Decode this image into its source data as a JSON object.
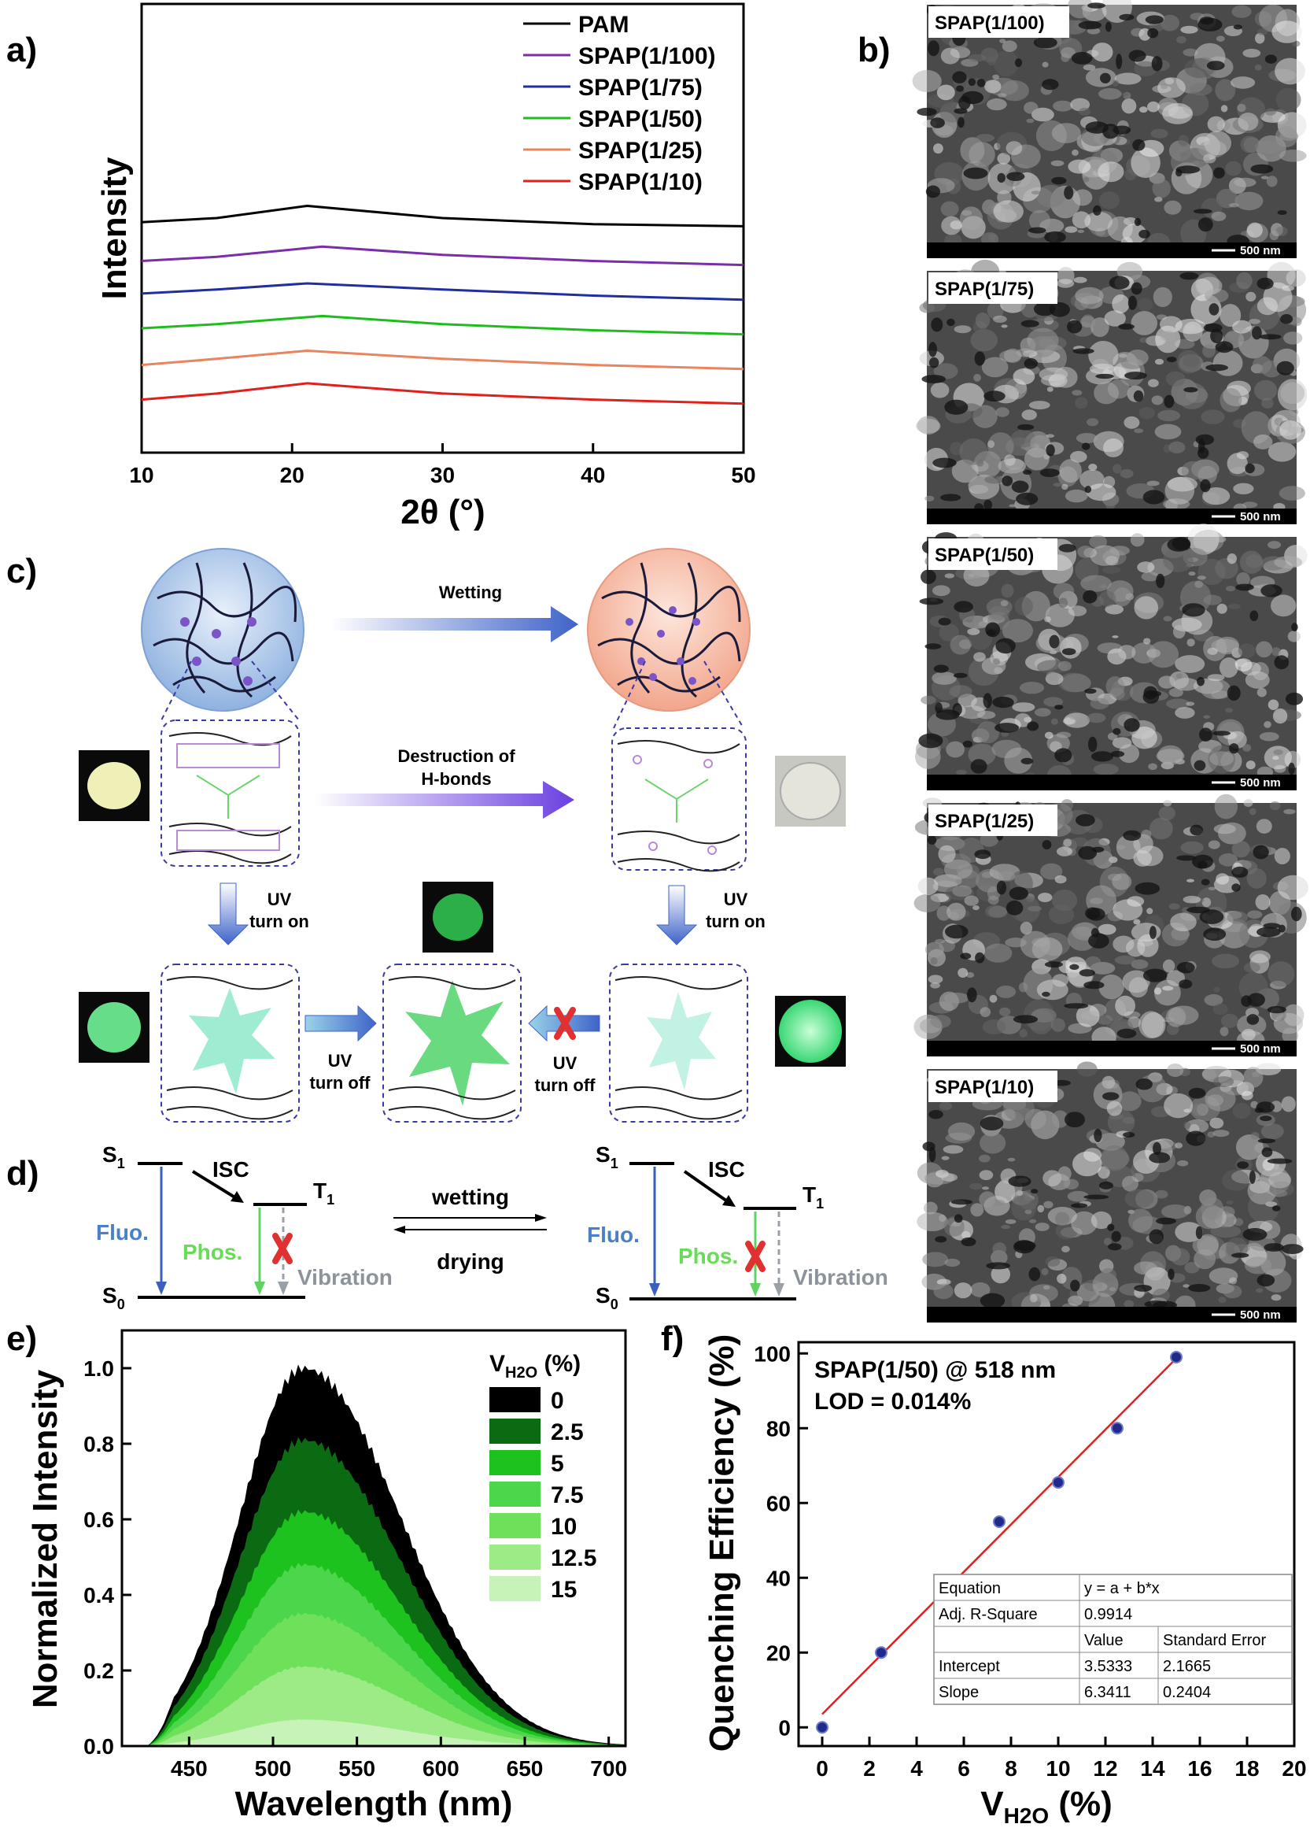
{
  "colors": {
    "PAM": "#000000",
    "SPAP(1/100)": "#7a2fa8",
    "SPAP(1/75)": "#1f2f9e",
    "SPAP(1/50)": "#1ebd1e",
    "SPAP(1/25)": "#e88560",
    "SPAP(1/10)": "#e0201c",
    "fluo_arrow": "#3a5fbf",
    "phos_arrow": "#5fd35f",
    "vibration": "#9aa0a6",
    "cross": "#e03030",
    "fit_line": "#e0201c",
    "marker": "#202a8a"
  },
  "panels": {
    "a": "a)",
    "b": "b)",
    "c": "c)",
    "d": "d)",
    "e": "e)",
    "f": "f)"
  },
  "chart_data": [
    {
      "panel": "a",
      "type": "line",
      "xlabel": "2θ (°)",
      "ylabel": "Intensity",
      "xlim": [
        10,
        50
      ],
      "xticks": [
        10,
        20,
        30,
        40,
        50
      ],
      "y_ticks_shown": false,
      "legend_position": "top-right",
      "series": [
        {
          "name": "PAM",
          "x": [
            10,
            15,
            21,
            30,
            40,
            50
          ],
          "y": [
            0.78,
            0.8,
            0.86,
            0.8,
            0.77,
            0.76
          ]
        },
        {
          "name": "SPAP(1/100)",
          "x": [
            10,
            15,
            22,
            30,
            40,
            50
          ],
          "y": [
            0.59,
            0.61,
            0.66,
            0.62,
            0.59,
            0.57
          ]
        },
        {
          "name": "SPAP(1/75)",
          "x": [
            10,
            15,
            21,
            30,
            40,
            50
          ],
          "y": [
            0.43,
            0.45,
            0.48,
            0.45,
            0.42,
            0.4
          ]
        },
        {
          "name": "SPAP(1/50)",
          "x": [
            10,
            15,
            22,
            30,
            40,
            50
          ],
          "y": [
            0.26,
            0.28,
            0.32,
            0.28,
            0.25,
            0.23
          ]
        },
        {
          "name": "SPAP(1/25)",
          "x": [
            10,
            15,
            21,
            30,
            40,
            50
          ],
          "y": [
            0.08,
            0.11,
            0.15,
            0.11,
            0.08,
            0.06
          ]
        },
        {
          "name": "SPAP(1/10)",
          "x": [
            10,
            15,
            21,
            30,
            40,
            50
          ],
          "y": [
            -0.09,
            -0.06,
            -0.01,
            -0.06,
            -0.09,
            -0.11
          ]
        }
      ]
    },
    {
      "panel": "e",
      "type": "area",
      "xlabel": "Wavelength (nm)",
      "ylabel": "Normalized Intensity",
      "xlim": [
        410,
        710
      ],
      "ylim": [
        0,
        1.1
      ],
      "xticks": [
        450,
        500,
        550,
        600,
        650,
        700
      ],
      "yticks": [
        0.0,
        0.2,
        0.4,
        0.6,
        0.8,
        1.0
      ],
      "peak_wavelength": 518,
      "legend_title_main": "V",
      "legend_title_sub": "H2O",
      "legend_title_unit": " (%)",
      "series": [
        {
          "name": "0",
          "peak": 1.0,
          "color": "#000000"
        },
        {
          "name": "2.5",
          "peak": 0.81,
          "color": "#0b6b12"
        },
        {
          "name": "5",
          "peak": 0.62,
          "color": "#1ec21e"
        },
        {
          "name": "7.5",
          "peak": 0.48,
          "color": "#4bd64b"
        },
        {
          "name": "10",
          "peak": 0.35,
          "color": "#6ee05a"
        },
        {
          "name": "12.5",
          "peak": 0.21,
          "color": "#9deb86"
        },
        {
          "name": "15",
          "peak": 0.07,
          "color": "#c8f3b8"
        }
      ]
    },
    {
      "panel": "f",
      "type": "scatter",
      "xlabel_main": "V",
      "xlabel_sub": "H2O",
      "xlabel_unit": " (%)",
      "ylabel": "Quenching Efficiency (%)",
      "xlim": [
        -1,
        20
      ],
      "ylim": [
        -5,
        103
      ],
      "xticks": [
        0,
        2,
        4,
        6,
        8,
        10,
        12,
        14,
        16,
        18,
        20
      ],
      "yticks": [
        0,
        20,
        40,
        60,
        80,
        100
      ],
      "points": [
        {
          "x": 0,
          "y": 0
        },
        {
          "x": 2.5,
          "y": 20
        },
        {
          "x": 5,
          "y": 38.5
        },
        {
          "x": 7.5,
          "y": 55
        },
        {
          "x": 10,
          "y": 65.5
        },
        {
          "x": 12.5,
          "y": 80
        },
        {
          "x": 15,
          "y": 99
        }
      ],
      "fit": {
        "intercept": 3.5333,
        "slope": 6.3411,
        "x_range": [
          0,
          15
        ]
      },
      "annotation_line1": "SPAP(1/50) @ 518 nm",
      "annotation_line2": "LOD = 0.014%",
      "table": [
        [
          "Equation",
          "y = a + b*x",
          ""
        ],
        [
          "Adj. R-Square",
          "0.9914",
          ""
        ],
        [
          "",
          "Value",
          "Standard Error"
        ],
        [
          "Intercept",
          "3.5333",
          "2.1665"
        ],
        [
          "Slope",
          "6.3411",
          "0.2404"
        ]
      ]
    }
  ],
  "sem_images": {
    "labels": [
      "SPAP(1/100)",
      "SPAP(1/75)",
      "SPAP(1/50)",
      "SPAP(1/25)",
      "SPAP(1/10)"
    ],
    "scale_bar": "500 nm"
  },
  "scheme_c": {
    "wetting": "Wetting",
    "destruction_line1": "Destruction of",
    "destruction_line2": "H-bonds",
    "uv": "UV",
    "turn_on": "turn on",
    "turn_off": "turn off"
  },
  "scheme_d": {
    "s1_main": "S",
    "s1_sub": "1",
    "s0_main": "S",
    "s0_sub": "0",
    "t1_main": "T",
    "t1_sub": "1",
    "isc": "ISC",
    "fluo": "Fluo.",
    "phos": "Phos.",
    "vibration": "Vibration",
    "wetting": "wetting",
    "drying": "drying"
  }
}
